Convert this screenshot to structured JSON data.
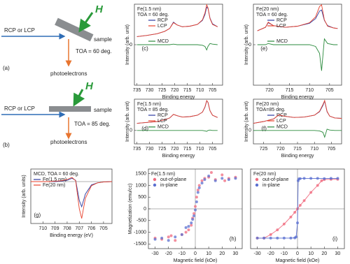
{
  "diagrams": [
    {
      "beam": "RCP or LCP",
      "field": "H",
      "sample": "sample",
      "toa": "TOA = 60 deg.",
      "electrons": "photoelectrons",
      "panel": "(a)"
    },
    {
      "beam": "RCP or LCP",
      "field": "H",
      "sample": "sample",
      "toa": "TOA = 85 deg.",
      "electrons": "photoelectrons",
      "panel": "(b)"
    }
  ],
  "chart_data": [
    {
      "type": "line",
      "panel": "(c)",
      "annotations": [
        "Fe(1.5 nm)",
        "TOA = 60 deg."
      ],
      "xlabel": "Binding energy",
      "ylabel": "Intensity (arb. unit)",
      "xlim": [
        736,
        701
      ],
      "xticks": [
        735,
        730,
        725,
        720,
        715,
        710,
        705
      ],
      "ylim": [
        -7,
        7
      ],
      "yticks": [
        0
      ],
      "x": [
        735,
        731,
        727,
        724,
        722,
        720.5,
        719,
        717,
        714,
        711,
        709,
        708,
        707.3,
        706.8,
        706,
        705,
        703
      ],
      "series": [
        {
          "name": "RCP",
          "color": "#2b3aa0",
          "values": [
            1.4,
            1.6,
            1.9,
            2.3,
            2.8,
            3.9,
            3.4,
            3.1,
            3.2,
            3.5,
            4.2,
            5.2,
            6.5,
            6.3,
            4.6,
            3.6,
            3.1
          ]
        },
        {
          "name": "LCP",
          "color": "#e8412c",
          "values": [
            1.4,
            1.6,
            1.9,
            2.3,
            2.8,
            3.8,
            3.4,
            3.1,
            3.2,
            3.5,
            4.3,
            5.5,
            6.9,
            6.4,
            4.5,
            3.5,
            3.1
          ]
        },
        {
          "name": "MCD",
          "color": "#2a8a3c",
          "values": [
            0,
            0,
            0,
            0,
            0,
            0.1,
            0,
            0,
            0,
            0,
            -0.1,
            -0.3,
            -0.9,
            -0.3,
            0.2,
            0.1,
            0
          ]
        }
      ]
    },
    {
      "type": "line",
      "panel": "(e)",
      "annotations": [
        "Fe(20 nm)",
        "TOA = 60 deg."
      ],
      "xlabel": "Binding energy",
      "ylabel": "Intensity (arb. unit)",
      "xlim": [
        724,
        702
      ],
      "xticks": [
        720,
        715,
        710,
        705
      ],
      "ylim": [
        -7,
        7
      ],
      "yticks": [
        0
      ],
      "x": [
        723,
        721,
        720.3,
        719,
        716,
        713,
        710,
        708.5,
        707.5,
        707,
        706.3,
        705.5,
        704,
        703
      ],
      "series": [
        {
          "name": "RCP",
          "color": "#2b3aa0",
          "values": [
            2.4,
            3.0,
            3.8,
            3.3,
            3.0,
            3.2,
            3.7,
            4.5,
            5.8,
            6.0,
            4.2,
            3.3,
            2.9,
            2.8
          ]
        },
        {
          "name": "LCP",
          "color": "#e8412c",
          "values": [
            2.4,
            3.0,
            3.9,
            3.3,
            3.0,
            3.2,
            3.8,
            4.8,
            6.6,
            6.9,
            4.3,
            3.2,
            2.9,
            2.8
          ]
        },
        {
          "name": "MCD",
          "color": "#2a8a3c",
          "values": [
            0,
            0,
            0.2,
            0,
            0,
            0,
            0,
            -0.3,
            -1.5,
            -4.5,
            1.0,
            0.2,
            0,
            0
          ]
        }
      ]
    },
    {
      "type": "line",
      "panel": "(d)",
      "annotations": [
        "Fe(1.5 nm)",
        "TOA = 85 deg."
      ],
      "xlabel": "Binding energy",
      "ylabel": "Intensity (arb. unit)",
      "xlim": [
        736,
        701
      ],
      "xticks": [
        735,
        730,
        725,
        720,
        715,
        710,
        705
      ],
      "ylim": [
        -3,
        7
      ],
      "yticks": [
        0
      ],
      "x": [
        735,
        731,
        727,
        724,
        722,
        720.5,
        719,
        717,
        714,
        711,
        709,
        708,
        707.3,
        706.8,
        706,
        705,
        703
      ],
      "series": [
        {
          "name": "RCP",
          "color": "#2b3aa0",
          "values": [
            1.6,
            1.8,
            2.0,
            2.4,
            2.8,
            3.6,
            3.3,
            3.0,
            3.1,
            3.4,
            4.1,
            5.2,
            6.6,
            6.3,
            4.4,
            3.4,
            2.9
          ]
        },
        {
          "name": "LCP",
          "color": "#e8412c",
          "values": [
            1.6,
            1.8,
            2.0,
            2.4,
            2.8,
            3.6,
            3.3,
            3.0,
            3.1,
            3.4,
            4.1,
            5.3,
            6.7,
            6.3,
            4.4,
            3.4,
            2.9
          ]
        },
        {
          "name": "MCD",
          "color": "#2a8a3c",
          "values": [
            0,
            0,
            0,
            0,
            0,
            0,
            0,
            0,
            0,
            0,
            0,
            -0.1,
            -0.2,
            0,
            0.1,
            0,
            0
          ]
        }
      ]
    },
    {
      "type": "line",
      "panel": "(f)",
      "annotations": [
        "Fe(20 nm)",
        "TOA=85 deg."
      ],
      "xlabel": "Binding energy",
      "ylabel": "Intensity (arb. unit)",
      "xlim": [
        728,
        702
      ],
      "xticks": [
        725,
        720,
        715,
        710,
        705
      ],
      "ylim": [
        -3,
        7
      ],
      "yticks": [
        0
      ],
      "x": [
        728,
        725,
        722,
        720.5,
        719,
        716,
        713,
        710,
        708.5,
        707.5,
        707,
        706.3,
        705.5,
        704,
        702
      ],
      "series": [
        {
          "name": "RCP",
          "color": "#2b3aa0",
          "values": [
            1.6,
            2.0,
            2.6,
            3.5,
            3.2,
            2.9,
            3.0,
            3.4,
            4.2,
            5.6,
            6.6,
            4.2,
            3.2,
            2.8,
            2.7
          ]
        },
        {
          "name": "LCP",
          "color": "#e8412c",
          "values": [
            1.6,
            2.0,
            2.6,
            3.5,
            3.2,
            2.9,
            3.0,
            3.4,
            4.3,
            5.8,
            6.7,
            4.3,
            3.2,
            2.8,
            2.7
          ]
        },
        {
          "name": "MCD",
          "color": "#2a8a3c",
          "values": [
            0,
            0,
            0,
            0,
            0,
            0,
            0,
            0,
            -0.1,
            -0.4,
            -1.5,
            0.3,
            0.1,
            0,
            0
          ]
        }
      ]
    },
    {
      "type": "line",
      "panel": "(g)",
      "annotations": [
        "MCD, TOA = 60 deg."
      ],
      "xlabel": "Binding energy (eV)",
      "ylabel": "Intensity (arb. units)",
      "xlim": [
        711,
        704.3
      ],
      "xticks": [
        710,
        709,
        708,
        707,
        706,
        705
      ],
      "ylim": [
        -10,
        3
      ],
      "zero_lines": true,
      "x": [
        711,
        710,
        709.5,
        709,
        708.5,
        708,
        707.6,
        707.3,
        707,
        706.8,
        706.5,
        706,
        705.5,
        705,
        704.3
      ],
      "series": [
        {
          "name": "Fe(1.5 nm)",
          "color": "#2b3aa0",
          "values": [
            0,
            0,
            0,
            0,
            0.1,
            0.3,
            0.8,
            0.3,
            -4.5,
            -6.0,
            -3.0,
            -0.8,
            -0.3,
            -0.1,
            0
          ]
        },
        {
          "name": "Fe(20 nm)",
          "color": "#e8412c",
          "values": [
            0,
            0,
            0,
            0.1,
            0.2,
            0.5,
            1.0,
            0.2,
            -6.5,
            -8.8,
            -4.0,
            -1.0,
            -0.3,
            -0.1,
            0
          ]
        }
      ]
    },
    {
      "type": "scatter",
      "panel": "(h)",
      "annotations": [
        "Fe(1.5 nm)"
      ],
      "xlabel": "Magnetic field (kOe)",
      "ylabel": "Magnetization (emu/cc)",
      "xlim": [
        -35,
        35
      ],
      "xticks": [
        -30,
        -20,
        -10,
        0,
        10,
        20,
        30
      ],
      "ylim": [
        -1700,
        1700
      ],
      "yticks": [
        -1500,
        -1000,
        -500,
        0,
        500,
        1000,
        1500
      ],
      "zero_lines": true,
      "series": [
        {
          "name": "out-of-plane",
          "color": "#f06a7e",
          "x": [
            -30,
            -25,
            -20,
            -15,
            -10,
            -7,
            -5,
            -3,
            -2,
            -1,
            0,
            1,
            2,
            3,
            5,
            7,
            10,
            15,
            20,
            25,
            30,
            -18,
            12,
            22
          ],
          "values": [
            -1250,
            -1300,
            -1200,
            -1350,
            -1100,
            -1000,
            -900,
            -700,
            -400,
            -200,
            100,
            500,
            800,
            1000,
            1200,
            1300,
            1350,
            1250,
            1450,
            1300,
            1350,
            -1150,
            1550,
            1200
          ]
        },
        {
          "name": "in-plane",
          "color": "#5a6fd0",
          "x": [
            -30,
            -25,
            -20,
            -15,
            -10,
            -7,
            -5,
            -3,
            -2,
            -1,
            0,
            1,
            2,
            3,
            5,
            7,
            10,
            15,
            20,
            25,
            30
          ],
          "values": [
            -1300,
            -1250,
            -1350,
            -1200,
            -1100,
            -800,
            -750,
            -600,
            -450,
            -300,
            -50,
            300,
            700,
            900,
            1100,
            1250,
            1400,
            1200,
            1300,
            1250,
            1300
          ]
        }
      ]
    },
    {
      "type": "scatter",
      "panel": "(i)",
      "annotations": [
        "Fe(20 nm)"
      ],
      "connect": true,
      "xlabel": "Magnetic field (kOe)",
      "xlim": [
        -35,
        35
      ],
      "xticks": [
        -30,
        -20,
        -10,
        0,
        10,
        20,
        30
      ],
      "ylim": [
        -1700,
        1700
      ],
      "zero_lines": true,
      "series": [
        {
          "name": "out-of-plane",
          "color": "#f06a7e",
          "x": [
            -30,
            -25,
            -20,
            -15,
            -10,
            -5,
            -2,
            0,
            2,
            5,
            10,
            15,
            18,
            20,
            25,
            30
          ],
          "values": [
            -1250,
            -1250,
            -1100,
            -900,
            -650,
            -350,
            -150,
            0,
            150,
            350,
            700,
            1000,
            1200,
            1250,
            1260,
            1260
          ]
        },
        {
          "name": "in-plane",
          "color": "#5a6fd0",
          "x": [
            -30,
            -25,
            -20,
            -15,
            -10,
            -5,
            -2,
            -1,
            0,
            0.5,
            1,
            2,
            5,
            10,
            15,
            20,
            25,
            30
          ],
          "values": [
            -1250,
            -1250,
            -1250,
            -1250,
            -1250,
            -1250,
            -1240,
            -1200,
            -600,
            1200,
            1280,
            1290,
            1300,
            1300,
            1300,
            1290,
            1300,
            1300
          ]
        }
      ]
    }
  ]
}
